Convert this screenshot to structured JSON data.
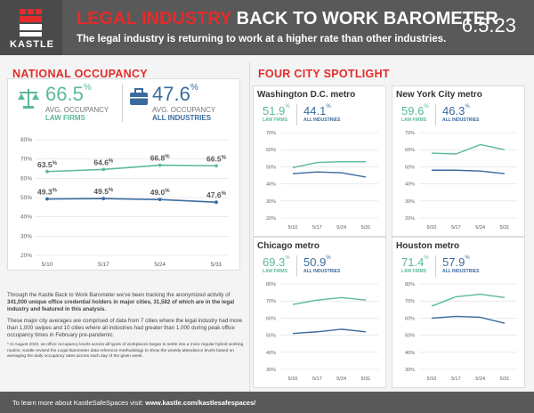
{
  "header": {
    "brand": "KASTLE",
    "title_red": "LEGAL INDUSTRY",
    "title_rest": " BACK TO WORK BAROMETER",
    "subtitle": "The legal industry is returning to work at a higher rate than other industries.",
    "date": "6.5.23"
  },
  "national": {
    "section_title": "NATIONAL OCCUPANCY",
    "law_value": "66.5",
    "law_unit": "%",
    "law_label1": "AVG. OCCUPANCY",
    "law_label2": "LAW FIRMS",
    "all_value": "47.6",
    "all_unit": "%",
    "all_label1": "AVG. OCCUPANCY",
    "all_label2": "ALL INDUSTRIES"
  },
  "spotlight_title": "FOUR CITY SPOTLIGHT",
  "colors": {
    "law": "#5bb99a",
    "all": "#3a6b9e",
    "accent": "#e42b2b"
  },
  "cities": [
    {
      "name": "Washington D.C. metro",
      "law_value": "51.9",
      "all_value": "44.1",
      "unit": "%",
      "law_label": "LAW FIRMS",
      "all_label": "ALL INDUSTRIES"
    },
    {
      "name": "New York City metro",
      "law_value": "59.6",
      "all_value": "46.3",
      "unit": "%",
      "law_label": "LAW FIRMS",
      "all_label": "ALL INDUSTRIES"
    },
    {
      "name": "Chicago metro",
      "law_value": "69.3",
      "all_value": "50.9",
      "unit": "%",
      "law_label": "LAW FIRMS",
      "all_label": "ALL INDUSTRIES"
    },
    {
      "name": "Houston metro",
      "law_value": "71.4",
      "all_value": "57.9",
      "unit": "%",
      "law_label": "LAW FIRMS",
      "all_label": "ALL INDUSTRIES"
    }
  ],
  "text": {
    "p1_a": "Through the Kastle Back to Work Barometer we've been tracking the anonymized activity of ",
    "p1_b": "341,000 unique office credential holders in major cities, 31,582 of which are in the legal industry and featured in this analysis.",
    "p2": "These major city averages are comprised of data from 7 cities where the legal industry had more than 1,000 swipes and 10 cities where all industries had greater than 1,000 during peak office occupancy times in February pre-pandemic.",
    "p3": "* In August 2022, as office occupancy levels across all types of workplaces began to settle into a more regular hybrid working routine, Kastle revised the Legal Barometer data reference methodology to show the weekly attendance levels based on averaging the daily occupancy rates across each day of the given week."
  },
  "footer": {
    "prefix": "To learn more about KastleSafeSpaces visit: ",
    "link": "www.kastle.com/kastlesafespaces/"
  },
  "chart_data": [
    {
      "type": "line",
      "title": "National Occupancy",
      "categories": [
        "5/10",
        "5/17",
        "5/24",
        "5/31"
      ],
      "series": [
        {
          "name": "Law Firms",
          "values": [
            63.5,
            64.6,
            66.8,
            66.5
          ],
          "labels": [
            "63.5",
            "64.6",
            "66.8",
            "66.5"
          ]
        },
        {
          "name": "All Industries",
          "values": [
            49.3,
            49.5,
            49.0,
            47.6
          ],
          "labels": [
            "49.3",
            "49.5",
            "49.0",
            "47.6"
          ]
        }
      ],
      "y_ticks": [
        "80%",
        "70%",
        "60%",
        "50%",
        "40%",
        "30%",
        "20%"
      ],
      "ylim": [
        20,
        80
      ]
    },
    {
      "type": "line",
      "title": "Washington D.C. metro",
      "categories": [
        "5/10",
        "5/17",
        "5/24",
        "5/31"
      ],
      "series": [
        {
          "name": "Law Firms",
          "values": [
            49.5,
            52.5,
            53.0,
            53.0
          ]
        },
        {
          "name": "All Industries",
          "values": [
            46.0,
            47.0,
            46.5,
            44.0
          ]
        }
      ],
      "y_ticks": [
        "70%",
        "60%",
        "50%",
        "40%",
        "30%",
        "20%"
      ],
      "ylim": [
        20,
        70
      ]
    },
    {
      "type": "line",
      "title": "New York City metro",
      "categories": [
        "5/10",
        "5/17",
        "5/24",
        "5/31"
      ],
      "series": [
        {
          "name": "Law Firms",
          "values": [
            58.0,
            57.5,
            63.0,
            60.0
          ]
        },
        {
          "name": "All Industries",
          "values": [
            48.0,
            48.0,
            47.5,
            46.0
          ]
        }
      ],
      "y_ticks": [
        "70%",
        "60%",
        "50%",
        "40%",
        "30%",
        "20%"
      ],
      "ylim": [
        20,
        70
      ]
    },
    {
      "type": "line",
      "title": "Chicago metro",
      "categories": [
        "5/10",
        "5/17",
        "5/24",
        "5/31"
      ],
      "series": [
        {
          "name": "Law Firms",
          "values": [
            68.0,
            70.5,
            72.0,
            70.5
          ]
        },
        {
          "name": "All Industries",
          "values": [
            51.0,
            52.0,
            53.5,
            52.0
          ]
        }
      ],
      "y_ticks": [
        "80%",
        "70%",
        "60%",
        "50%",
        "40%",
        "30%"
      ],
      "ylim": [
        30,
        80
      ]
    },
    {
      "type": "line",
      "title": "Houston metro",
      "categories": [
        "5/10",
        "5/17",
        "5/24",
        "5/31"
      ],
      "series": [
        {
          "name": "Law Firms",
          "values": [
            67.0,
            72.5,
            74.0,
            72.0
          ]
        },
        {
          "name": "All Industries",
          "values": [
            60.0,
            61.0,
            60.5,
            57.0
          ]
        }
      ],
      "y_ticks": [
        "80%",
        "70%",
        "60%",
        "50%",
        "40%",
        "30%"
      ],
      "ylim": [
        30,
        80
      ]
    }
  ]
}
